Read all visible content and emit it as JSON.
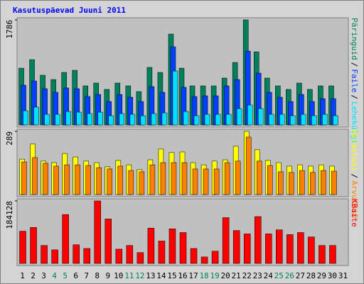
{
  "chart_data": {
    "type": "bar",
    "title": "Kasutuspäevad Juuni 2011",
    "categories": [
      "1",
      "2",
      "3",
      "4",
      "5",
      "6",
      "7",
      "8",
      "9",
      "10",
      "11",
      "12",
      "13",
      "14",
      "15",
      "16",
      "17",
      "18",
      "19",
      "20",
      "21",
      "22",
      "23",
      "24",
      "25",
      "26",
      "27",
      "28",
      "29",
      "30",
      "31"
    ],
    "category_colors": [
      "#000000",
      "#000000",
      "#000000",
      "#00805c",
      "#00805c",
      "#000000",
      "#000000",
      "#000000",
      "#000000",
      "#000000",
      "#00805c",
      "#00805c",
      "#000000",
      "#000000",
      "#000000",
      "#000000",
      "#000000",
      "#00805c",
      "#00805c",
      "#000000",
      "#000000",
      "#000000",
      "#000000",
      "#000000",
      "#00805c",
      "#00805c",
      "#000000",
      "#000000",
      "#000000",
      "#000000",
      "#000000"
    ],
    "legend_separator": "/",
    "panels": [
      {
        "ylim": [
          0,
          1786
        ],
        "yticks": [
          1786
        ],
        "series": [
          {
            "name": "Päringuid",
            "color": "#00805c",
            "values": [
              965,
              1110,
              845,
              772,
              893,
              929,
              664,
              712,
              604,
              712,
              664,
              567,
              978,
              893,
              1545,
              965,
              664,
              664,
              664,
              797,
              1062,
              1786,
              1243,
              797,
              664,
              604,
              712,
              604,
              664,
              664,
              null
            ]
          },
          {
            "name": "Faile",
            "color": "#0040ff",
            "values": [
              676,
              748,
              616,
              555,
              628,
              616,
              483,
              519,
              398,
              519,
              471,
              398,
              652,
              555,
              1328,
              640,
              483,
              495,
              495,
              664,
              772,
              1255,
              881,
              555,
              471,
              398,
              519,
              398,
              447,
              447,
              null
            ]
          },
          {
            "name": "Lehekülgi",
            "color": "#00e0ff",
            "values": [
              241,
              302,
              181,
              181,
              229,
              217,
              193,
              217,
              157,
              193,
              181,
              157,
              193,
              205,
              917,
              229,
              157,
              181,
              181,
              181,
              278,
              338,
              278,
              181,
              181,
              157,
              181,
              157,
              181,
              157,
              null
            ]
          }
        ]
      },
      {
        "ylim": [
          0,
          289
        ],
        "yticks": [
          289
        ],
        "series": [
          {
            "name": "Külastusi",
            "color": "#ffff00",
            "values": [
              162,
              231,
              153,
              146,
              188,
              172,
              153,
              146,
              127,
              156,
              136,
              114,
              159,
              208,
              192,
              195,
              146,
              136,
              153,
              159,
              221,
              289,
              205,
              156,
              146,
              130,
              136,
              130,
              136,
              130,
              null
            ]
          },
          {
            "name": "Arvuteid",
            "color": "#ff8000",
            "values": [
              149,
              169,
              143,
              130,
              136,
              136,
              133,
              123,
              117,
              130,
              110,
              104,
              136,
              146,
              146,
              146,
              117,
              117,
              117,
              146,
              153,
              263,
              153,
              133,
              104,
              101,
              110,
              101,
              110,
              107,
              null
            ]
          }
        ]
      },
      {
        "ylim": [
          0,
          184128
        ],
        "yticks": [
          184128
        ],
        "series": [
          {
            "name": "KBaite",
            "color": "#ff0000",
            "values": [
              95000,
              106000,
              53000,
              40000,
              144000,
              55000,
              44000,
              184128,
              131000,
              42000,
              53000,
              32000,
              104000,
              66000,
              102000,
              91000,
              44000,
              19000,
              36000,
              135000,
              97000,
              87000,
              138000,
              87000,
              99000,
              85000,
              91000,
              78000,
              53000,
              53000,
              null
            ]
          }
        ]
      }
    ]
  }
}
